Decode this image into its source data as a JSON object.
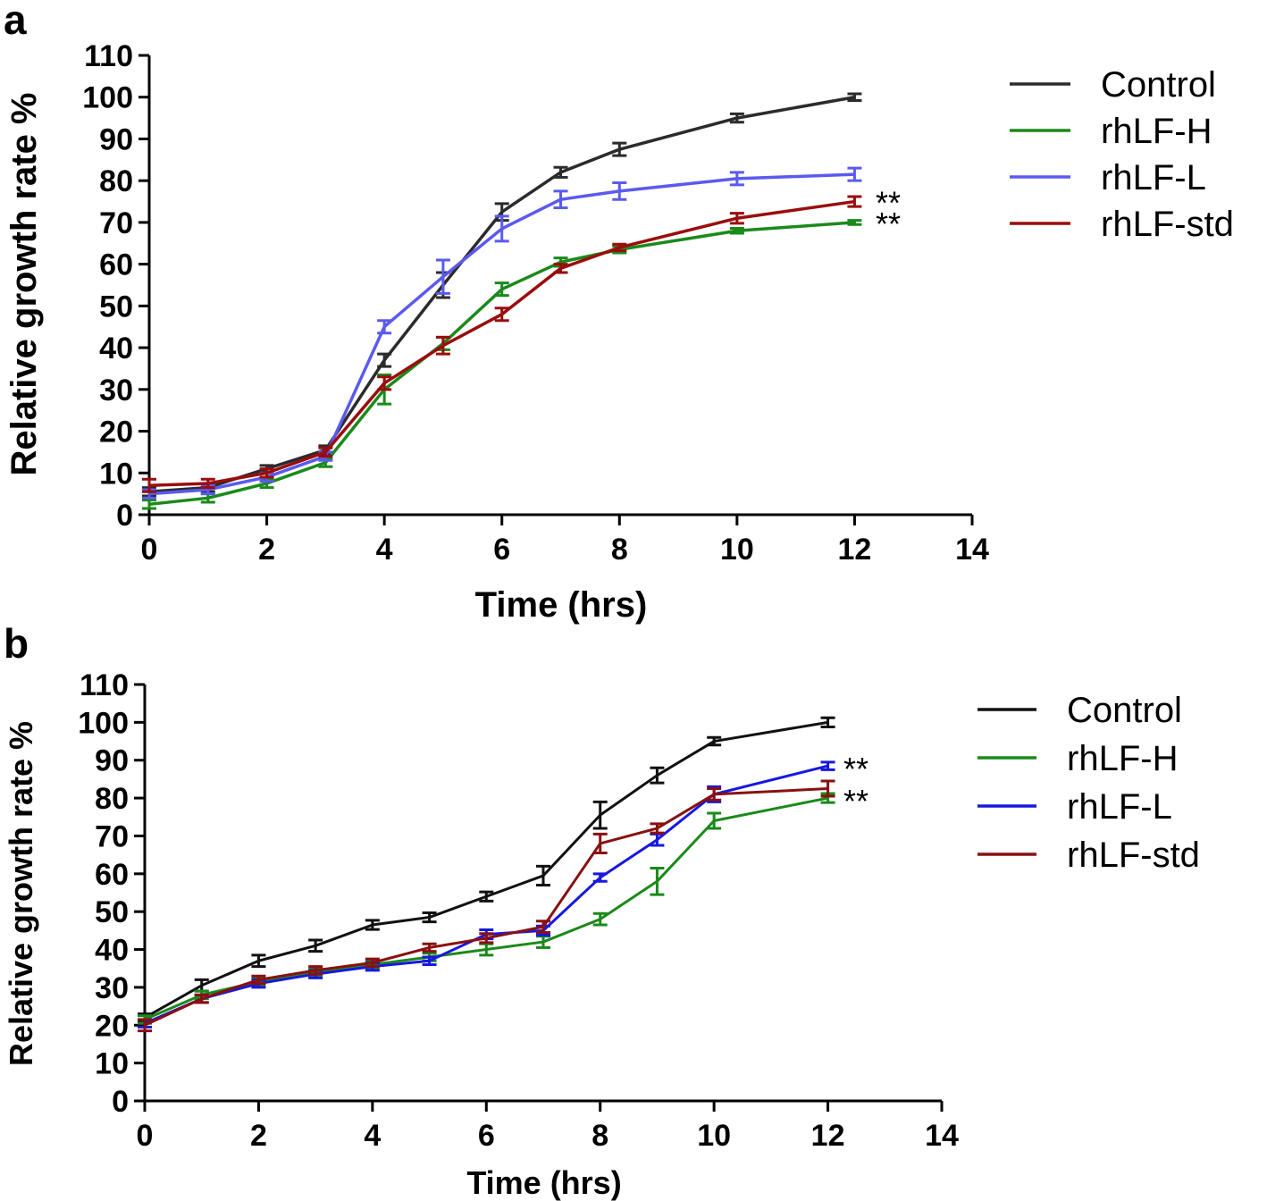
{
  "chart_data": [
    {
      "panel": "a",
      "type": "line",
      "xlabel": "Time (hrs)",
      "ylabel": "Relative growth rate %",
      "xlim": [
        0,
        14
      ],
      "ylim": [
        0,
        110
      ],
      "xticks": [
        0,
        2,
        4,
        6,
        8,
        10,
        12,
        14
      ],
      "yticks": [
        0,
        10,
        20,
        30,
        40,
        50,
        60,
        70,
        80,
        90,
        100,
        110
      ],
      "x": [
        0,
        1,
        2,
        3,
        4,
        5,
        6,
        7,
        8,
        10,
        12
      ],
      "legend_position": "top-right",
      "grid": false,
      "series": [
        {
          "name": "Control",
          "color": "#2b2b2b",
          "values": [
            5.5,
            6.5,
            11,
            15.5,
            37,
            55,
            72.5,
            82,
            87.5,
            95,
            100
          ],
          "errors": [
            1,
            1,
            0.8,
            1,
            1.5,
            3,
            2,
            1.2,
            1.5,
            1,
            0.8
          ]
        },
        {
          "name": "rhLF-H",
          "color": "#1a8a1a",
          "values": [
            2.5,
            4,
            7.5,
            12.5,
            30,
            41,
            54,
            60.5,
            63.5,
            68,
            70
          ],
          "errors": [
            1,
            1,
            1,
            1,
            3.5,
            1.5,
            1.5,
            1,
            0.8,
            0.6,
            0.5
          ]
        },
        {
          "name": "rhLF-L",
          "color": "#5a5af0",
          "values": [
            5,
            6,
            9,
            14,
            45,
            57,
            68.5,
            75.5,
            77.5,
            80.5,
            81.5
          ],
          "errors": [
            1,
            1,
            1,
            1,
            1.5,
            4,
            3,
            2,
            2,
            1.5,
            1.5
          ]
        },
        {
          "name": "rhLF-std",
          "color": "#9a0d0d",
          "values": [
            7,
            7.5,
            10,
            15,
            31.5,
            40.5,
            48,
            59,
            64,
            71,
            75
          ],
          "errors": [
            1.5,
            1,
            1,
            1,
            1.5,
            2,
            1.5,
            1,
            0.8,
            1.2,
            1.2
          ]
        }
      ],
      "annotations": [
        {
          "text": "**",
          "at_series": "rhLF-std"
        },
        {
          "text": "**",
          "at_series": "rhLF-H"
        }
      ]
    },
    {
      "panel": "b",
      "type": "line",
      "xlabel": "Time (hrs)",
      "ylabel": "Relative growth rate %",
      "xlim": [
        0,
        14
      ],
      "ylim": [
        0,
        110
      ],
      "xticks": [
        0,
        2,
        4,
        6,
        8,
        10,
        12,
        14
      ],
      "yticks": [
        0,
        10,
        20,
        30,
        40,
        50,
        60,
        70,
        80,
        90,
        100,
        110
      ],
      "x": [
        0,
        1,
        2,
        3,
        4,
        5,
        6,
        7,
        8,
        9,
        10,
        12
      ],
      "legend_position": "top-right",
      "grid": false,
      "series": [
        {
          "name": "Control",
          "color": "#111111",
          "values": [
            22,
            30.5,
            37,
            41,
            46.5,
            48.5,
            54,
            59.5,
            75.5,
            86,
            95,
            100
          ],
          "errors": [
            1,
            1.5,
            1.5,
            1.5,
            1.2,
            1.2,
            1.2,
            2.5,
            3.5,
            2,
            1,
            1.2
          ]
        },
        {
          "name": "rhLF-H",
          "color": "#1a8a1a",
          "values": [
            21.5,
            28,
            31.5,
            34,
            36,
            38,
            40,
            42,
            48,
            58,
            74,
            80
          ],
          "errors": [
            1,
            1,
            1,
            1,
            1,
            1,
            1.5,
            1.5,
            1.5,
            3.5,
            2,
            1.2
          ]
        },
        {
          "name": "rhLF-L",
          "color": "#1818e0",
          "values": [
            20.5,
            27,
            31,
            33.5,
            35.5,
            37,
            44,
            45,
            59,
            69,
            81,
            88.5
          ],
          "errors": [
            1,
            1,
            1,
            1,
            1,
            1,
            1.2,
            1.2,
            1,
            1.5,
            2,
            1
          ]
        },
        {
          "name": "rhLF-std",
          "color": "#8a1010",
          "values": [
            20,
            27,
            32,
            34.5,
            36.5,
            40.5,
            43,
            46,
            68,
            72,
            81,
            82.5
          ],
          "errors": [
            1.5,
            1,
            1,
            1,
            1,
            1,
            1.2,
            1.5,
            2.5,
            1.2,
            1.5,
            2
          ]
        }
      ],
      "annotations": [
        {
          "text": "**",
          "at_series": "rhLF-L"
        },
        {
          "text": "**",
          "at_series": "rhLF-H"
        }
      ]
    }
  ]
}
